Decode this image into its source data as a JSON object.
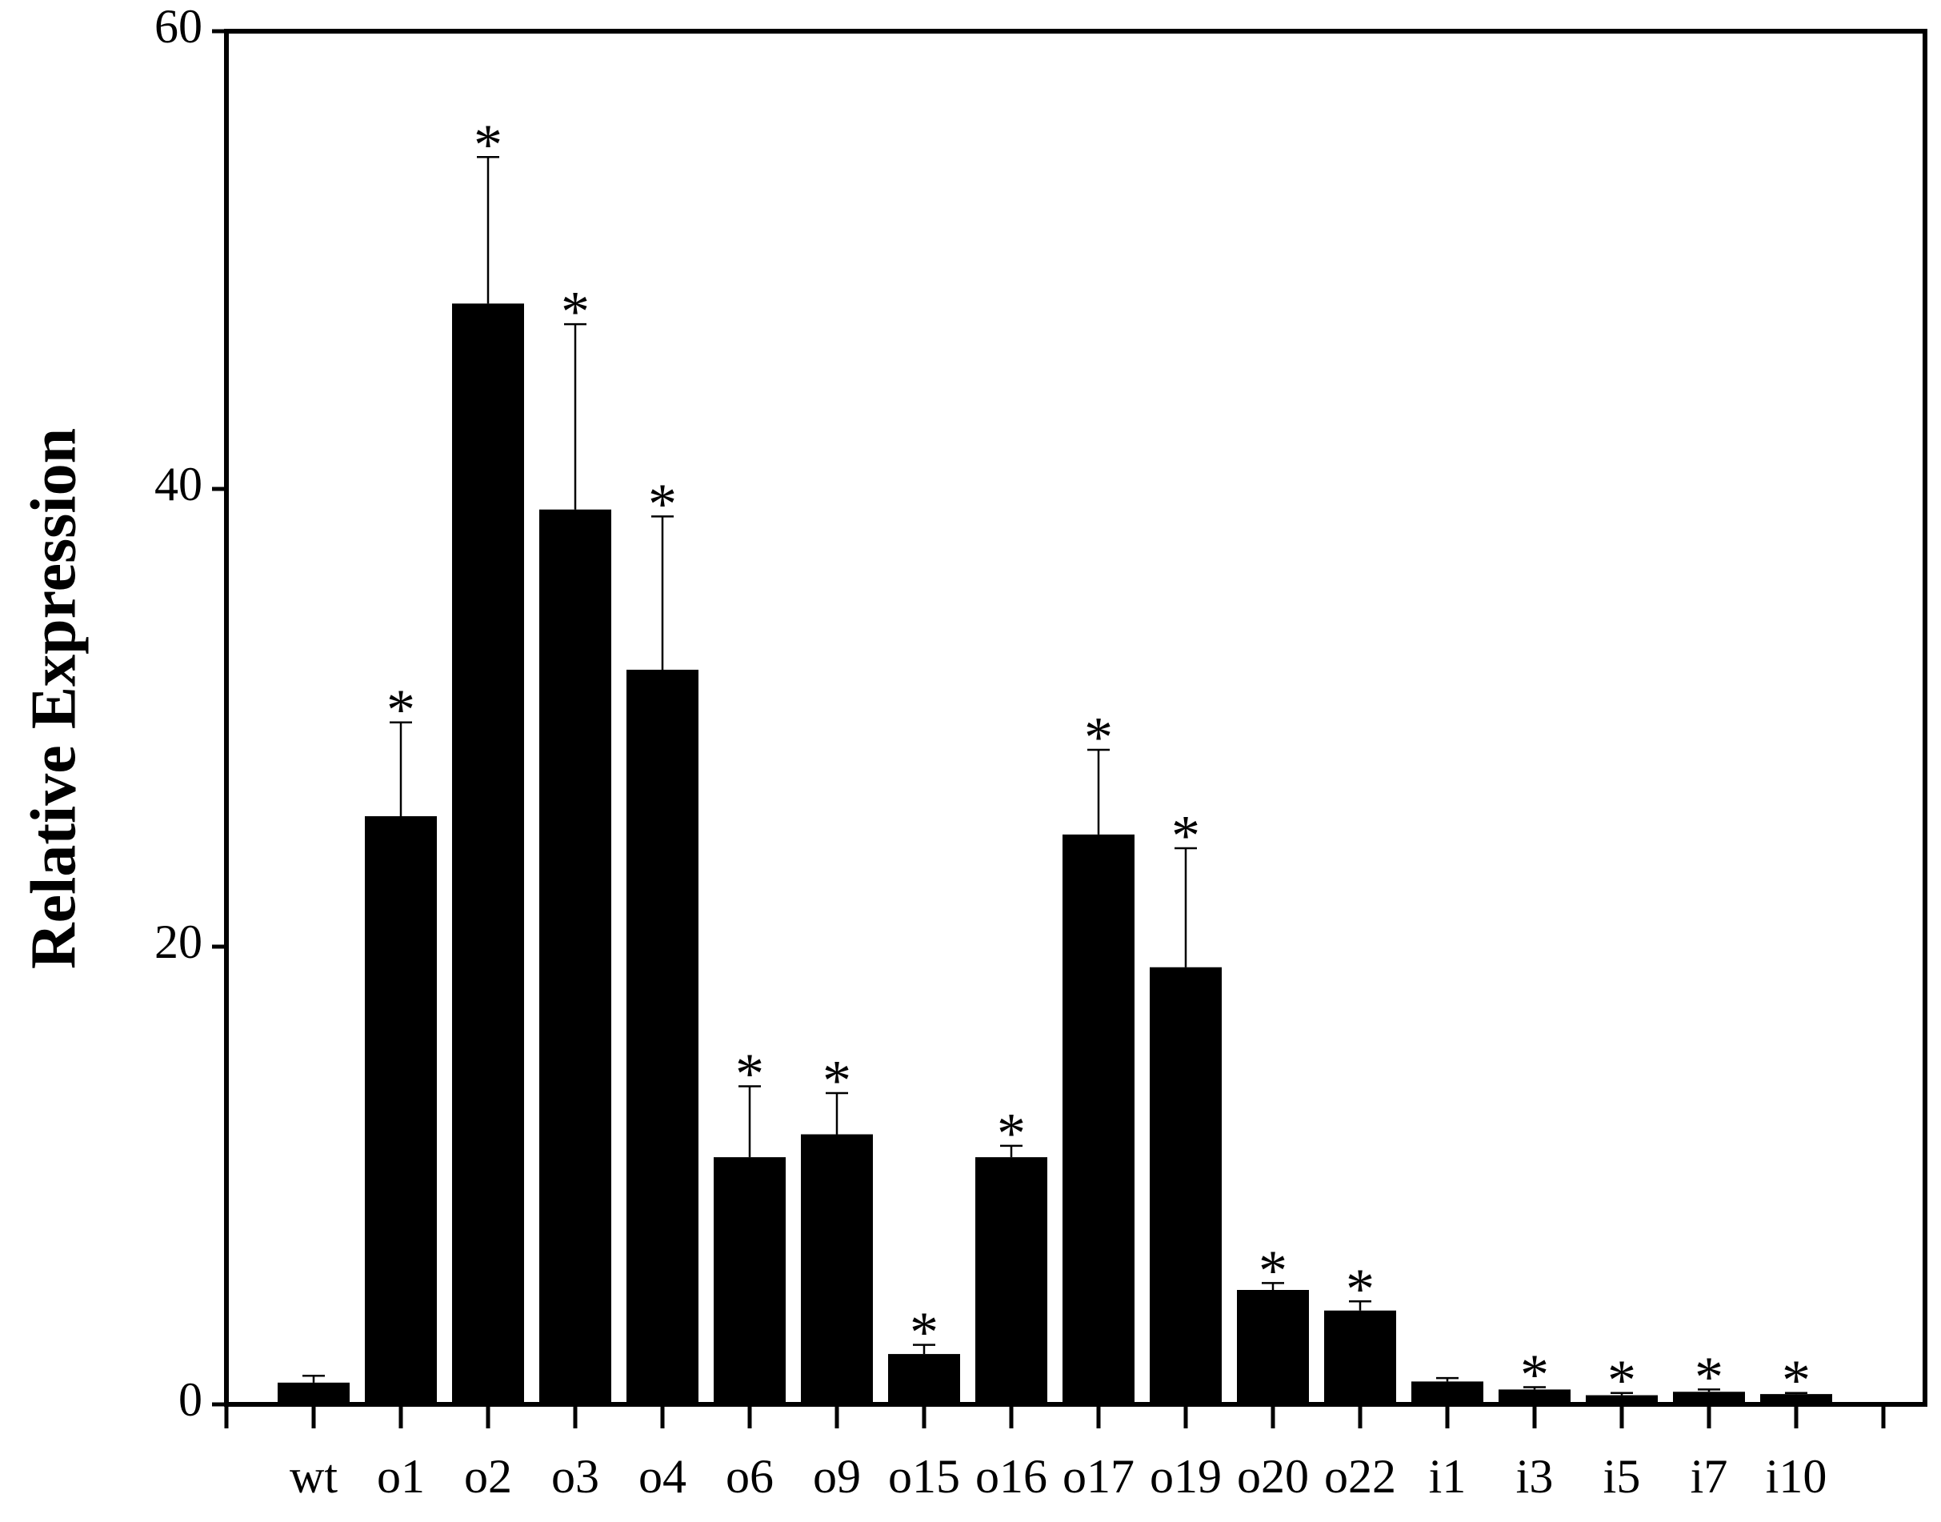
{
  "chart_data": {
    "type": "bar",
    "y_label": "Relative Expression",
    "categories": [
      "wt",
      "o1",
      "o2",
      "o3",
      "o4",
      "o6",
      "o9",
      "o15",
      "o16",
      "o17",
      "o19",
      "o20",
      "o22",
      "i1",
      "i3",
      "i5",
      "i7",
      "i10"
    ],
    "values": [
      0.95,
      25.7,
      48.1,
      39.1,
      32.1,
      10.8,
      11.8,
      2.2,
      10.8,
      24.9,
      19.1,
      5.0,
      4.1,
      1.0,
      0.65,
      0.4,
      0.55,
      0.45
    ],
    "errors": [
      0.3,
      4.1,
      6.4,
      8.1,
      6.7,
      3.1,
      1.8,
      0.4,
      0.5,
      3.7,
      5.2,
      0.3,
      0.4,
      0.15,
      0.1,
      0.1,
      0.1,
      0.05
    ],
    "annotations": [
      null,
      "*",
      "*",
      "*",
      "*",
      "*",
      "*",
      "*",
      "*",
      "*",
      "*",
      "*",
      "*",
      null,
      "*",
      "*",
      "*",
      "*"
    ],
    "color": "#000000",
    "ylim": [
      0,
      60
    ],
    "yticks": [
      0,
      20,
      40,
      60
    ],
    "grid": false
  }
}
